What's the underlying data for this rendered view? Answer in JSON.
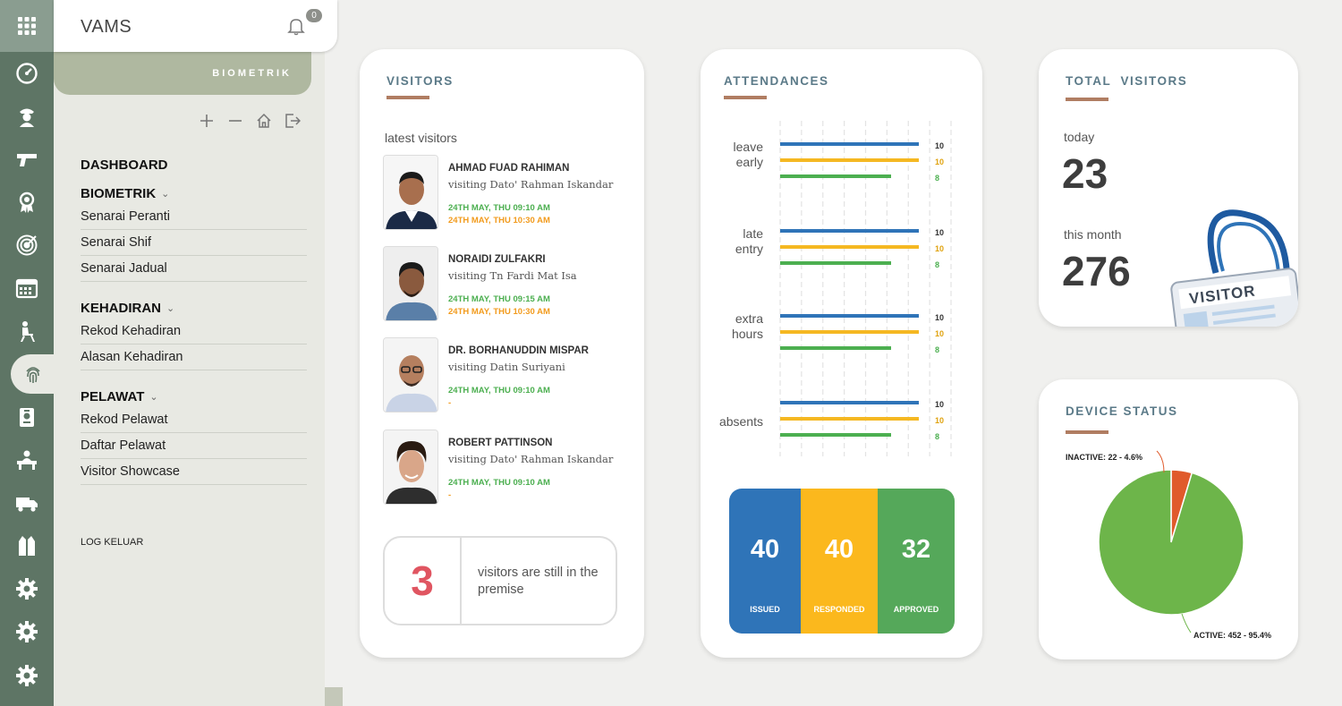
{
  "app": {
    "title": "VAMS",
    "notification_count": "0"
  },
  "section": "BIOMETRIK",
  "menu": {
    "dashboard": "DASHBOARD",
    "groups": [
      {
        "title": "BIOMETRIK",
        "items": [
          "Senarai Peranti",
          "Senarai Shif",
          "Senarai Jadual"
        ]
      },
      {
        "title": "KEHADIRAN",
        "items": [
          "Rekod Kehadiran",
          "Alasan Kehadiran"
        ]
      },
      {
        "title": "PELAWAT",
        "items": [
          "Rekod Pelawat",
          "Daftar Pelawat",
          "Visitor Showcase"
        ]
      }
    ],
    "logout": "LOG KELUAR"
  },
  "rail_icons": [
    "apps-icon",
    "dashboard-gauge-icon",
    "guard-icon",
    "gun-icon",
    "award-icon",
    "target-icon",
    "calendar-icon",
    "desk-chair-icon",
    "fingerprint-icon",
    "id-badge-icon",
    "reception-desk-icon",
    "truck-icon",
    "vest-icon",
    "gear-icon",
    "gear-icon",
    "gear-icon"
  ],
  "visitors": {
    "title": "VISITORS",
    "subtitle": "latest visitors",
    "list": [
      {
        "name": "AHMAD FUAD RAHIMAN",
        "visiting": "visiting Dato' Rahman Iskandar",
        "in": "24TH MAY, THU 09:10 AM",
        "out": "24TH MAY, THU 10:30 AM"
      },
      {
        "name": "NORAIDI ZULFAKRI",
        "visiting": "visiting Tn Fardi Mat Isa",
        "in": "24TH MAY, THU 09:15 AM",
        "out": "24TH MAY, THU 10:30 AM"
      },
      {
        "name": "DR. BORHANUDDIN MISPAR",
        "visiting": "visiting Datin Suriyani",
        "in": "24TH MAY, THU 09:10 AM",
        "out": "-"
      },
      {
        "name": "ROBERT PATTINSON",
        "visiting": "visiting Dato' Rahman Iskandar",
        "in": "24TH MAY, THU 09:10 AM",
        "out": "-"
      }
    ],
    "premise_count": "3",
    "premise_text": "visitors are still in the premise"
  },
  "attendances": {
    "title": "ATTENDANCES",
    "colors": [
      "#2f74b8",
      "#f5b822",
      "#4caf50"
    ],
    "summary": [
      {
        "value": "40",
        "label": "ISSUED",
        "color": "#2f74b8"
      },
      {
        "value": "40",
        "label": "RESPONDED",
        "color": "#fbb81d"
      },
      {
        "value": "32",
        "label": "APPROVED",
        "color": "#55a85a"
      }
    ]
  },
  "chart_data": [
    {
      "type": "bar",
      "orientation": "horizontal",
      "categories": [
        "leave early",
        "late entry",
        "extra hours",
        "absents"
      ],
      "series": [
        {
          "values": [
            10,
            10,
            10,
            10
          ]
        },
        {
          "values": [
            10,
            10,
            10,
            10
          ]
        },
        {
          "values": [
            8,
            8,
            8,
            8
          ]
        }
      ],
      "xlim": [
        0,
        10
      ],
      "grid": true
    },
    {
      "type": "pie",
      "labels": [
        "INACTIVE: 22 - 4.6%",
        "ACTIVE: 452 - 95.4%"
      ],
      "values": [
        22,
        452
      ],
      "colors": [
        "#e05a2b",
        "#6db54a"
      ]
    }
  ],
  "total_visitors": {
    "title": "TOTAL  VISITORS",
    "today_label": "today",
    "today_value": "23",
    "month_label": "this month",
    "month_value": "276",
    "badge_text": "VISITOR"
  },
  "device_status": {
    "title": "DEVICE STATUS"
  }
}
